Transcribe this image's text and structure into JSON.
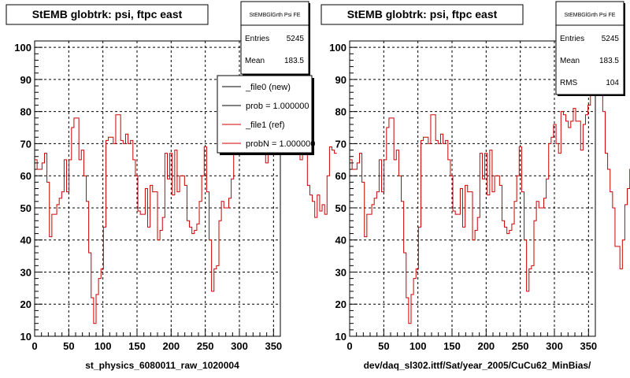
{
  "colors": {
    "hist": "#cc0000",
    "new": "#000000",
    "ref": "#cc0000",
    "grid": "#000000"
  },
  "chart_data": [
    {
      "type": "line",
      "title": "StEMB globtrk: psi, ftpc east",
      "xlabel": "st_physics_6080011_raw_1020004",
      "ylabel": "",
      "xlim": [
        0,
        360
      ],
      "ylim": [
        10,
        102
      ],
      "xticks": [
        "0",
        "50",
        "100",
        "150",
        "200",
        "250",
        "300",
        "350"
      ],
      "yticks": [
        "10",
        "20",
        "30",
        "40",
        "50",
        "60",
        "70",
        "80",
        "90",
        "100"
      ],
      "grid": true,
      "binwidth": 3.6,
      "stats": {
        "header": "StEMBGlGrth Psi FE",
        "rows": [
          {
            "label": "Entries",
            "value": "5245"
          },
          {
            "label": "Mean",
            "value": "183.5"
          }
        ]
      },
      "legend": {
        "placement": "top-right",
        "entries": [
          {
            "label": "_file0 (new)"
          },
          {
            "label": "prob = 1.000000"
          },
          {
            "label": "_file1 (ref)"
          },
          {
            "label": "probN = 1.000000"
          }
        ]
      },
      "series": [
        {
          "values": [
            65,
            62,
            62,
            64,
            67,
            58,
            41,
            48,
            48,
            51,
            53,
            55,
            65,
            55,
            65,
            75,
            78,
            78,
            65,
            68,
            60,
            52,
            36,
            22,
            14,
            23,
            28,
            31,
            44,
            71,
            72,
            72,
            70,
            79,
            79,
            71,
            70,
            73,
            70,
            71,
            65,
            60,
            49,
            48,
            48,
            56,
            44,
            57,
            55,
            55,
            40,
            43,
            47,
            67,
            59,
            67,
            54,
            68,
            55,
            60,
            60,
            57,
            46,
            44,
            42,
            43,
            45,
            52,
            60,
            69,
            55,
            40,
            24,
            31,
            32,
            46,
            52,
            50,
            50,
            53,
            59,
            70,
            72,
            76,
            70,
            67,
            80,
            79,
            77,
            75,
            77,
            77,
            70,
            68,
            64,
            81,
            80,
            80,
            78,
            80,
            84,
            84,
            77,
            73,
            71,
            72,
            72,
            75,
            65,
            71,
            72,
            57,
            54,
            52,
            47,
            54,
            49,
            51,
            48,
            60,
            69,
            68,
            67
          ]
        }
      ]
    },
    {
      "type": "line",
      "title": "StEMB globtrk: psi, ftpc east",
      "xlabel": "dev/daq_sl302.ittf/Sat/year_2005/CuCu62_MinBias/",
      "ylabel": "",
      "xlim": [
        0,
        360
      ],
      "ylim": [
        10,
        102
      ],
      "xticks": [
        "0",
        "50",
        "100",
        "150",
        "200",
        "250",
        "300",
        "350"
      ],
      "yticks": [
        "10",
        "20",
        "30",
        "40",
        "50",
        "60",
        "70",
        "80",
        "90",
        "100"
      ],
      "grid": true,
      "binwidth": 3.6,
      "stats": {
        "header": "StEMBGlGrth Psi FE",
        "rows": [
          {
            "label": "Entries",
            "value": "5245"
          },
          {
            "label": "Mean",
            "value": "183.5"
          },
          {
            "label": "RMS",
            "value": "104"
          }
        ]
      },
      "series": [
        {
          "values": [
            65,
            62,
            62,
            64,
            67,
            58,
            41,
            48,
            48,
            51,
            53,
            55,
            65,
            55,
            65,
            75,
            78,
            78,
            65,
            68,
            60,
            52,
            36,
            22,
            14,
            23,
            28,
            31,
            44,
            71,
            72,
            72,
            70,
            79,
            79,
            71,
            70,
            73,
            70,
            71,
            65,
            60,
            49,
            48,
            48,
            56,
            44,
            57,
            55,
            55,
            40,
            43,
            47,
            67,
            59,
            67,
            54,
            68,
            55,
            60,
            60,
            57,
            46,
            44,
            42,
            43,
            45,
            52,
            60,
            69,
            55,
            40,
            24,
            31,
            32,
            46,
            52,
            50,
            50,
            53,
            59,
            70,
            72,
            76,
            70,
            67,
            80,
            79,
            77,
            75,
            77,
            81,
            77,
            77,
            68,
            76,
            79,
            82,
            86,
            95,
            100,
            98,
            90,
            80,
            67,
            62,
            55,
            50,
            38,
            38,
            31,
            40,
            51,
            56,
            62,
            65,
            69,
            68,
            67,
            69,
            60,
            60,
            62
          ]
        }
      ]
    }
  ]
}
